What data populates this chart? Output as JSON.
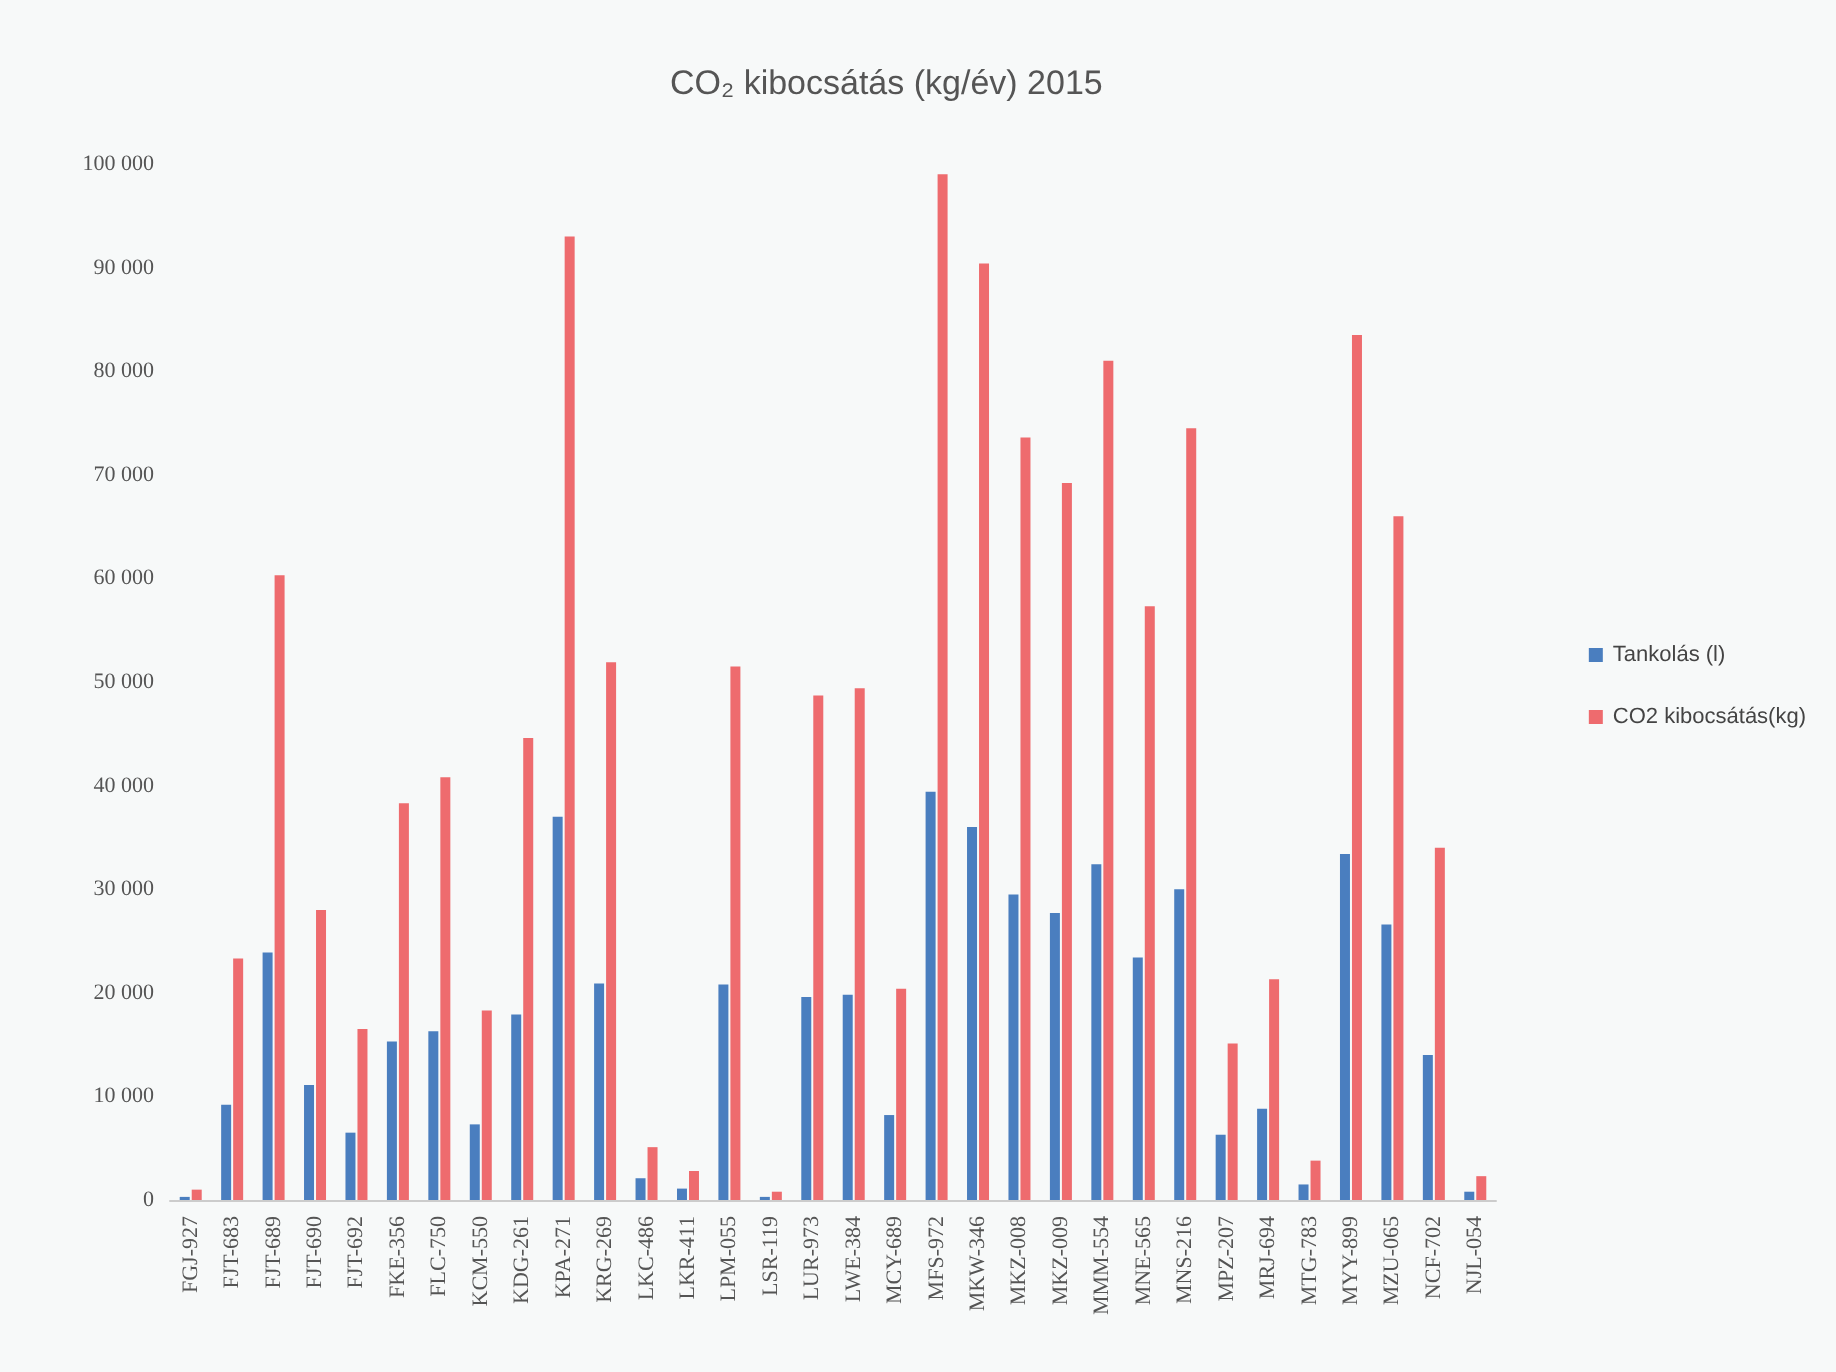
{
  "chart_data": {
    "type": "bar",
    "title": "CO₂ kibocsátás (kg/év) 2015",
    "categories": [
      "FGJ-927",
      "FJT-683",
      "FJT-689",
      "FJT-690",
      "FJT-692",
      "FKE-356",
      "FLC-750",
      "KCM-550",
      "KDG-261",
      "KPA-271",
      "KRG-269",
      "LKC-486",
      "LKR-411",
      "LPM-055",
      "LSR-119",
      "LUR-973",
      "LWE-384",
      "MCY-689",
      "MFS-972",
      "MKW-346",
      "MKZ-008",
      "MKZ-009",
      "MMM-554",
      "MNE-565",
      "MNS-216",
      "MPZ-207",
      "MRJ-694",
      "MTG-783",
      "MYY-899",
      "MZU-065",
      "NCF-702",
      "NJL-054"
    ],
    "series": [
      {
        "name": "Tankolás (l)",
        "color": "#4a7ebf",
        "values": [
          300,
          9200,
          23900,
          11100,
          6500,
          15300,
          16300,
          7300,
          17900,
          37000,
          20900,
          2100,
          1100,
          20800,
          300,
          19600,
          19800,
          8200,
          39400,
          36000,
          29500,
          27700,
          32400,
          23400,
          30000,
          6300,
          8800,
          1500,
          33400,
          26600,
          14000,
          800
        ]
      },
      {
        "name": "CO2 kibocsátás(kg)",
        "color": "#ee6b6e",
        "values": [
          1000,
          23300,
          60300,
          28000,
          16500,
          38300,
          40800,
          18300,
          44600,
          93000,
          51900,
          5100,
          2800,
          51500,
          800,
          48700,
          49400,
          20400,
          99000,
          90400,
          73600,
          69200,
          81000,
          57300,
          74500,
          15100,
          21300,
          3800,
          83500,
          66000,
          34000,
          2300
        ]
      }
    ],
    "ylim": [
      0,
      100000
    ],
    "yticks": [
      {
        "value": 0,
        "label": "0"
      },
      {
        "value": 10000,
        "label": "10 000"
      },
      {
        "value": 20000,
        "label": "20 000"
      },
      {
        "value": 30000,
        "label": "30 000"
      },
      {
        "value": 40000,
        "label": "40 000"
      },
      {
        "value": 50000,
        "label": "50 000"
      },
      {
        "value": 60000,
        "label": "60 000"
      },
      {
        "value": 70000,
        "label": "70 000"
      },
      {
        "value": 80000,
        "label": "80 000"
      },
      {
        "value": 90000,
        "label": "90 000"
      },
      {
        "value": 100000,
        "label": "100 000"
      }
    ],
    "grid": false,
    "legend": "right"
  }
}
